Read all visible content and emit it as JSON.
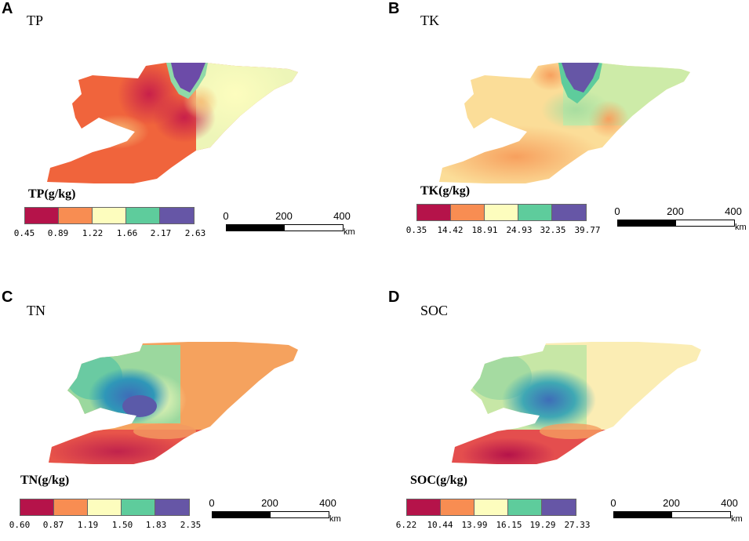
{
  "colors": {
    "class1": "#B5134A",
    "class2": "#F88D52",
    "class3": "#FDFDBE",
    "class4": "#5ECC9C",
    "class5": "#6656A6"
  },
  "scale_bar": {
    "ticks": [
      "0",
      "200",
      "400"
    ],
    "unit": "km"
  },
  "panels": [
    {
      "letter": "A",
      "title": "TP",
      "legend_title": "TP(g/kg)",
      "breaks": [
        "0.45",
        "0.89",
        "1.22",
        "1.66",
        "2.17",
        "2.63"
      ]
    },
    {
      "letter": "B",
      "title": "TK",
      "legend_title": "TK(g/kg)",
      "breaks": [
        "0.35",
        "14.42",
        "18.91",
        "24.93",
        "32.35",
        "39.77"
      ]
    },
    {
      "letter": "C",
      "title": "TN",
      "legend_title": "TN(g/kg)",
      "breaks": [
        "0.60",
        "0.87",
        "1.19",
        "1.50",
        "1.83",
        "2.35"
      ]
    },
    {
      "letter": "D",
      "title": "SOC",
      "legend_title": "SOC(g/kg)",
      "breaks": [
        "6.22",
        "10.44",
        "13.99",
        "16.15",
        "19.29",
        "27.33"
      ]
    }
  ]
}
